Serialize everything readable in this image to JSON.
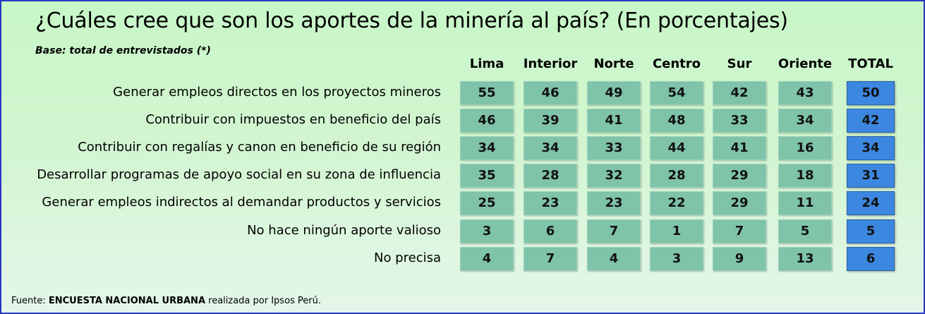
{
  "title": "¿Cuáles cree que son los aportes de la minería al país? (En porcentajes)",
  "subtitle": "Base: total de entrevistados (*)",
  "source": {
    "prefix": "Fuente: ",
    "bold": "ENCUESTA NACIONAL URBANA",
    "suffix": " realizada por Ipsos Perú."
  },
  "colors": {
    "cell": "#7fc3a9",
    "total": "#3c87e0",
    "border": "#2a35c4"
  },
  "chart_data": {
    "type": "table",
    "columns": [
      "Lima",
      "Interior",
      "Norte",
      "Centro",
      "Sur",
      "Oriente",
      "TOTAL"
    ],
    "rows": [
      {
        "label": "Generar empleos directos en los proyectos mineros",
        "values": [
          55,
          46,
          49,
          54,
          42,
          43,
          50
        ]
      },
      {
        "label": "Contribuir con impuestos en beneficio del país",
        "values": [
          46,
          39,
          41,
          48,
          33,
          34,
          42
        ]
      },
      {
        "label": "Contribuir con regalías y canon en beneficio de su región",
        "values": [
          34,
          34,
          33,
          44,
          41,
          16,
          34
        ]
      },
      {
        "label": "Desarrollar programas de apoyo social en su zona de influencia",
        "values": [
          35,
          28,
          32,
          28,
          29,
          18,
          31
        ]
      },
      {
        "label": "Generar empleos indirectos al demandar productos y servicios",
        "values": [
          25,
          23,
          23,
          22,
          29,
          11,
          24
        ]
      },
      {
        "label": "No hace ningún aporte valioso",
        "values": [
          3,
          6,
          7,
          1,
          7,
          5,
          5
        ]
      },
      {
        "label": "No precisa",
        "values": [
          4,
          7,
          4,
          3,
          9,
          13,
          6
        ]
      }
    ]
  }
}
